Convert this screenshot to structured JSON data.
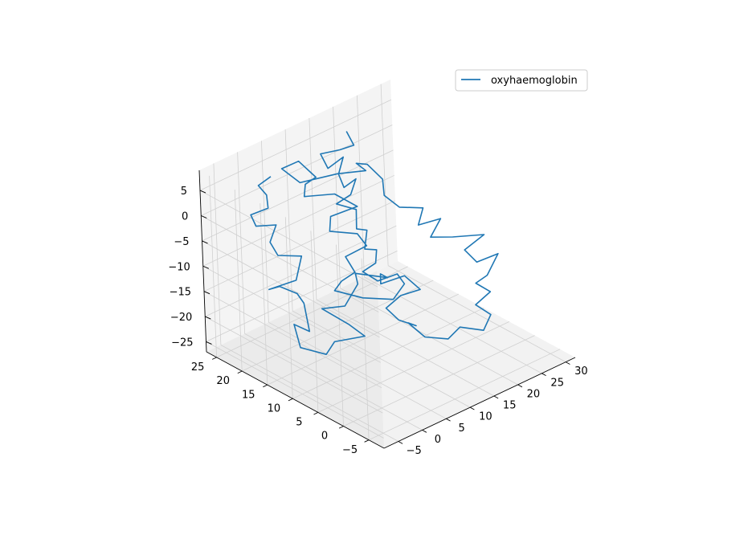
{
  "chart_data": {
    "type": "line",
    "projection": "3d",
    "title": "",
    "xlabel": "",
    "ylabel": "",
    "zlabel": "",
    "xlim": [
      -8,
      32
    ],
    "ylim": [
      -8,
      27
    ],
    "zlim": [
      -27,
      9
    ],
    "grid": true,
    "legend": {
      "placement": "top-right",
      "entries": [
        "oxyhaemoglobin"
      ]
    },
    "colors": {
      "series": "#1f77b4",
      "pane": "#f2f2f2",
      "grid": "#d0d0d0"
    },
    "x_ticks": [
      -5,
      0,
      5,
      10,
      15,
      20,
      25,
      30
    ],
    "y_ticks": [
      -5,
      0,
      5,
      10,
      15,
      20,
      25
    ],
    "z_ticks": [
      -25,
      -20,
      -15,
      -10,
      -5,
      0,
      5
    ],
    "x_tick_labels": [
      "−5",
      "0",
      "5",
      "10",
      "15",
      "20",
      "25",
      "30"
    ],
    "y_tick_labels": [
      "−5",
      "0",
      "5",
      "10",
      "15",
      "20",
      "25"
    ],
    "z_tick_labels": [
      "−25",
      "−20",
      "−15",
      "−10",
      "−5",
      "0",
      "5"
    ],
    "series": [
      {
        "name": "oxyhaemoglobin",
        "points": [
          [
            20.5,
            25.0,
            5.0
          ],
          [
            21.6,
            24.7,
            1.9
          ],
          [
            19.3,
            25.3,
            1.7
          ],
          [
            15.8,
            25.8,
            2.2
          ],
          [
            16.2,
            24.8,
            -0.3
          ],
          [
            18.4,
            23.8,
            1.5
          ],
          [
            17.2,
            23.7,
            -1.3
          ],
          [
            17.3,
            22.8,
            -3.5
          ],
          [
            19.2,
            22.2,
            -2.3
          ],
          [
            17.7,
            21.9,
            -4.6
          ],
          [
            15.7,
            22.9,
            -6.1
          ],
          [
            17.8,
            21.0,
            -7.1
          ],
          [
            17.3,
            20.6,
            -10.5
          ],
          [
            18.9,
            20.1,
            -11.2
          ],
          [
            17.8,
            19.6,
            -14.2
          ],
          [
            19.7,
            19.1,
            -14.9
          ],
          [
            19.0,
            18.7,
            -17.0
          ],
          [
            17.2,
            19.6,
            -18.4
          ],
          [
            19.1,
            18.5,
            -20.5
          ],
          [
            21.6,
            17.0,
            -19.4
          ],
          [
            22.6,
            16.6,
            -21.6
          ],
          [
            21.1,
            17.5,
            -24.5
          ],
          [
            17.6,
            20.2,
            -24.1
          ],
          [
            14.0,
            22.3,
            -22.2
          ],
          [
            14.4,
            21.2,
            -19.9
          ],
          [
            15.7,
            19.7,
            -17.9
          ],
          [
            14.9,
            20.7,
            -15.0
          ],
          [
            17.9,
            19.3,
            -13.4
          ],
          [
            17.0,
            20.2,
            -11.1
          ],
          [
            13.5,
            22.3,
            -10.2
          ],
          [
            13.4,
            21.9,
            -7.0
          ],
          [
            16.4,
            19.4,
            -5.0
          ],
          [
            14.1,
            21.6,
            -2.7
          ],
          [
            10.6,
            24.3,
            -3.1
          ],
          [
            10.1,
            23.5,
            0.0
          ],
          [
            11.2,
            22.4,
            1.5
          ],
          [
            9.0,
            23.6,
            5.0
          ],
          [
            7.0,
            25.1,
            3.6
          ],
          [
            8.0,
            22.5,
            1.8
          ],
          [
            12.7,
            19.5,
            3.1
          ],
          [
            15.7,
            16.7,
            3.9
          ],
          [
            14.0,
            16.9,
            6.0
          ],
          [
            13.9,
            14.6,
            7.1
          ],
          [
            15.3,
            13.0,
            4.4
          ],
          [
            15.7,
            13.2,
            0.9
          ],
          [
            17.0,
            11.5,
            -1.1
          ],
          [
            20.0,
            9.7,
            -1.6
          ],
          [
            18.8,
            9.6,
            -4.4
          ],
          [
            21.8,
            8.0,
            -3.6
          ],
          [
            20.3,
            8.7,
            -7.0
          ],
          [
            23.1,
            7.0,
            -7.3
          ],
          [
            26.3,
            3.8,
            -6.5
          ],
          [
            23.8,
            5.4,
            -9.3
          ],
          [
            25.0,
            4.2,
            -11.6
          ],
          [
            27.5,
            2.3,
            -10.0
          ],
          [
            25.5,
            2.7,
            -13.6
          ],
          [
            24.0,
            3.6,
            -15.0
          ],
          [
            26.1,
            2.8,
            -17.2
          ],
          [
            24.0,
            3.8,
            -19.4
          ],
          [
            25.2,
            2.0,
            -20.9
          ],
          [
            23.9,
            2.3,
            -23.6
          ],
          [
            20.8,
            4.0,
            -22.5
          ],
          [
            19.5,
            5.2,
            -24.9
          ],
          [
            16.8,
            7.2,
            -24.4
          ],
          [
            15.3,
            9.0,
            -21.9
          ],
          [
            15.3,
            7.4,
            -21.6
          ],
          [
            13.1,
            8.7,
            -20.2
          ],
          [
            11.6,
            9.7,
            -17.7
          ],
          [
            13.0,
            8.0,
            -14.9
          ],
          [
            15.1,
            6.1,
            -13.6
          ],
          [
            12.9,
            7.0,
            -10.4
          ],
          [
            10.3,
            9.3,
            -12.1
          ],
          [
            9.6,
            8.6,
            -9.4
          ],
          [
            9.8,
            7.4,
            -9.6
          ],
          [
            6.5,
            10.6,
            -9.0
          ],
          [
            6.6,
            10.3,
            -11.0
          ],
          [
            4.6,
            11.1,
            -14.9
          ],
          [
            2.5,
            13.7,
            -15.9
          ],
          [
            4.6,
            10.4,
            -18.2
          ],
          [
            6.6,
            9.3,
            -20.8
          ],
          [
            3.4,
            12.3,
            -22.1
          ],
          [
            1.9,
            12.6,
            -24.1
          ],
          [
            -0.8,
            15.1,
            -22.9
          ],
          [
            -0.4,
            16.6,
            -19.3
          ],
          [
            0.9,
            14.8,
            -20.3
          ],
          [
            1.3,
            16.1,
            -15.6
          ],
          [
            0.6,
            16.7,
            -13.7
          ],
          [
            -1.4,
            18.2,
            -12.2
          ],
          [
            -2.2,
            19.6,
            -13.2
          ],
          [
            0.4,
            16.6,
            -10.9
          ],
          [
            1.6,
            16.5,
            -6.6
          ],
          [
            -0.7,
            19.0,
            -6.8
          ],
          [
            -1.4,
            19.8,
            -4.3
          ],
          [
            -0.2,
            19.6,
            -1.3
          ],
          [
            -2.5,
            21.4,
            -1.5
          ],
          [
            -3.3,
            21.6,
            1.0
          ],
          [
            -1.3,
            20.0,
            2.3
          ],
          [
            -0.7,
            20.8,
            4.2
          ],
          [
            -1.7,
            21.4,
            6.2
          ],
          [
            0.1,
            20.6,
            7.6
          ]
        ]
      }
    ]
  }
}
